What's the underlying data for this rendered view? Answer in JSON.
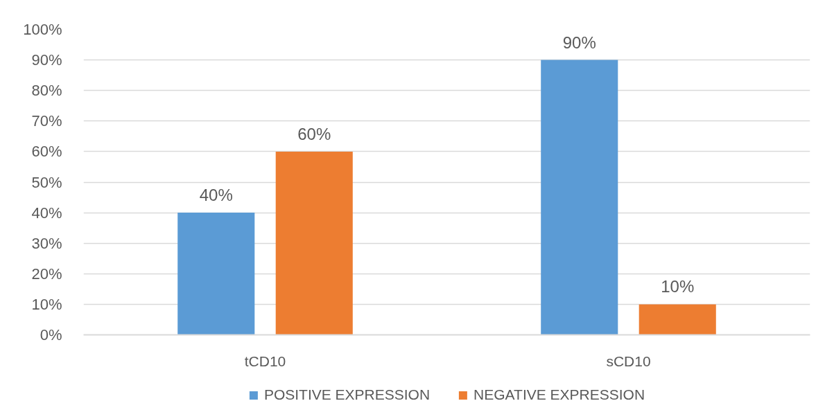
{
  "chart_data": {
    "type": "bar",
    "categories": [
      "tCD10",
      "sCD10"
    ],
    "series": [
      {
        "name": "POSITIVE EXPRESSION",
        "color": "#5b9bd5",
        "values": [
          40,
          90
        ],
        "value_labels": [
          "40%",
          "90%"
        ]
      },
      {
        "name": "NEGATIVE EXPRESSION",
        "color": "#ed7d31",
        "values": [
          60,
          10
        ],
        "value_labels": [
          "60%",
          "10%"
        ]
      }
    ],
    "ylim": [
      0,
      100
    ],
    "yticks": [
      {
        "value": 0,
        "label": "0%"
      },
      {
        "value": 10,
        "label": "10%"
      },
      {
        "value": 20,
        "label": "20%"
      },
      {
        "value": 30,
        "label": "30%"
      },
      {
        "value": 40,
        "label": "40%"
      },
      {
        "value": 50,
        "label": "50%"
      },
      {
        "value": 60,
        "label": "60%"
      },
      {
        "value": 70,
        "label": "70%"
      },
      {
        "value": 80,
        "label": "80%"
      },
      {
        "value": 90,
        "label": "90%"
      },
      {
        "value": 100,
        "label": "100%"
      }
    ],
    "grid": "y",
    "legend": "bottom"
  }
}
